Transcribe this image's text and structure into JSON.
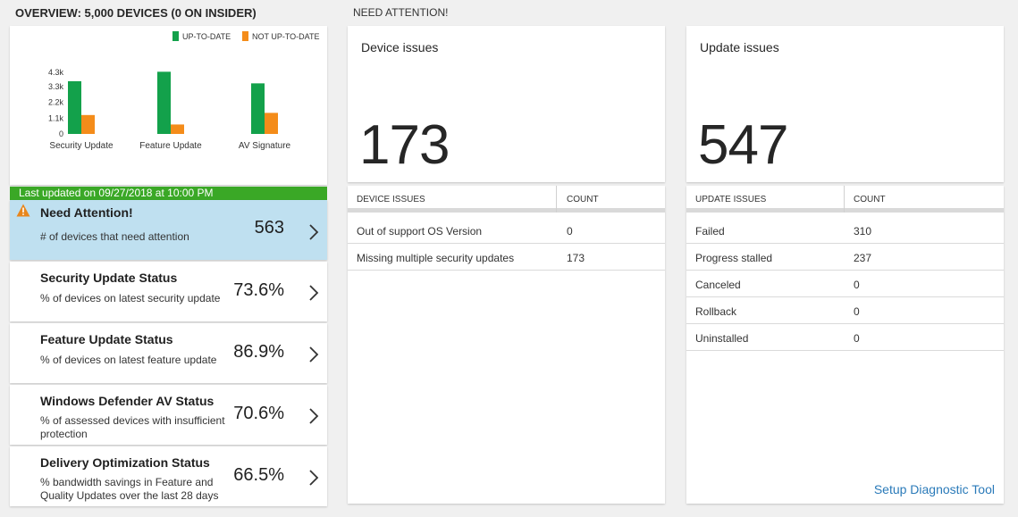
{
  "overview_title": "OVERVIEW: 5,000 DEVICES (0 ON INSIDER)",
  "attention_title": "NEED ATTENTION!",
  "chart_data": {
    "type": "bar",
    "categories": [
      "Security Update",
      "Feature Update",
      "AV Signature"
    ],
    "series": [
      {
        "name": "UP-TO-DATE",
        "color": "#13a14b",
        "values": [
          3680,
          4340,
          3530
        ]
      },
      {
        "name": "NOT UP-TO-DATE",
        "color": "#f48c1a",
        "values": [
          1320,
          660,
          1470
        ]
      }
    ],
    "yticks": [
      "0",
      "1.1k",
      "2.2k",
      "3.3k",
      "4.3k"
    ],
    "ytick_values": [
      0,
      1100,
      2200,
      3300,
      4300
    ],
    "ylim": [
      0,
      4300
    ],
    "legend_position": "top-right"
  },
  "last_updated": "Last updated on 09/27/2018 at 10:00 PM",
  "tiles": [
    {
      "title": "Need Attention!",
      "subtitle": "# of devices that need attention",
      "value": "563"
    },
    {
      "title": "Security Update Status",
      "subtitle": "% of devices on latest security update",
      "value": "73.6%"
    },
    {
      "title": "Feature Update Status",
      "subtitle": "% of devices on latest feature update",
      "value": "86.9%"
    },
    {
      "title": "Windows Defender AV Status",
      "subtitle": "% of assessed devices with insufficient protection",
      "value": "70.6%"
    },
    {
      "title": "Delivery Optimization Status",
      "subtitle": "% bandwidth savings in Feature and Quality Updates over the last 28 days",
      "value": "66.5%"
    }
  ],
  "device_issues": {
    "title": "Device issues",
    "value": "173",
    "table": {
      "headers": [
        "DEVICE ISSUES",
        "COUNT"
      ],
      "rows": [
        [
          "Out of support OS Version",
          "0"
        ],
        [
          "Missing multiple security updates",
          "173"
        ]
      ]
    }
  },
  "update_issues": {
    "title": "Update issues",
    "value": "547",
    "table": {
      "headers": [
        "UPDATE ISSUES",
        "COUNT"
      ],
      "rows": [
        [
          "Failed",
          "310"
        ],
        [
          "Progress stalled",
          "237"
        ],
        [
          "Canceled",
          "0"
        ],
        [
          "Rollback",
          "0"
        ],
        [
          "Uninstalled",
          "0"
        ]
      ]
    },
    "link": "Setup Diagnostic Tool"
  },
  "icons": {
    "warning": "warning-icon",
    "chevron": "chevron-right-icon"
  },
  "colors": {
    "banner": "#3aa826",
    "active_tile": "#bfe0f0",
    "link": "#2a7ab9"
  }
}
